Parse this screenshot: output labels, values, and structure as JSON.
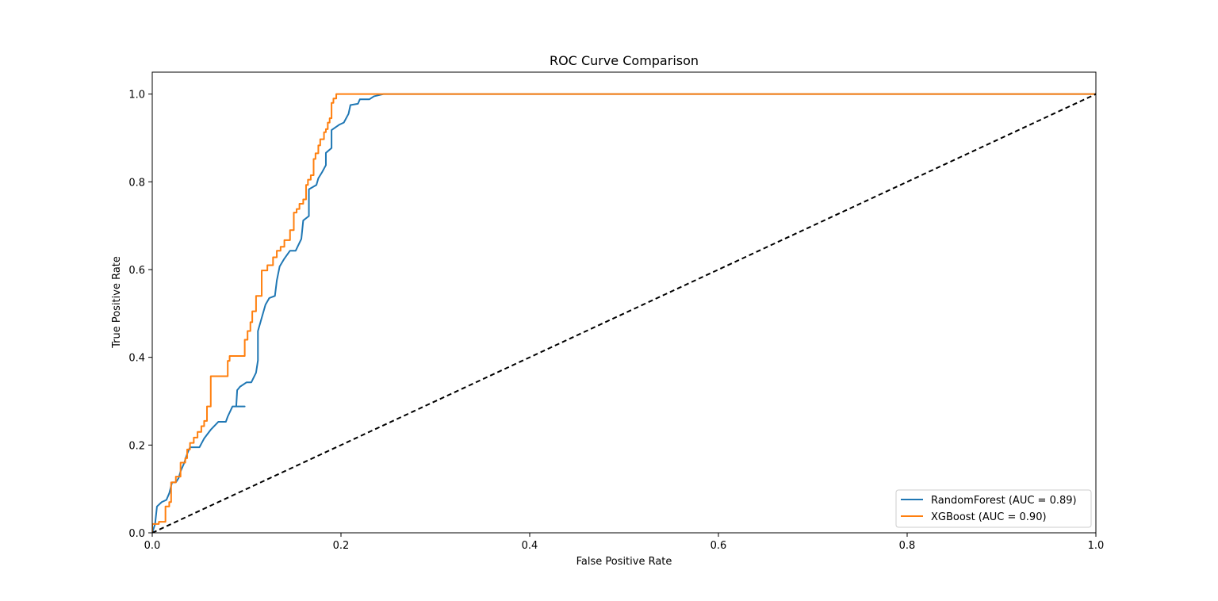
{
  "chart_data": {
    "type": "line",
    "title": "ROC Curve Comparison",
    "xlabel": "False Positive Rate",
    "ylabel": "True Positive Rate",
    "xlim": [
      0.0,
      1.0
    ],
    "ylim": [
      0.0,
      1.05
    ],
    "xticks": [
      0.0,
      0.2,
      0.4,
      0.6,
      0.8,
      1.0
    ],
    "yticks": [
      0.0,
      0.2,
      0.4,
      0.6,
      0.8,
      1.0
    ],
    "xtick_labels": [
      "0.0",
      "0.2",
      "0.4",
      "0.6",
      "0.8",
      "1.0"
    ],
    "ytick_labels": [
      "0.0",
      "0.2",
      "0.4",
      "0.6",
      "0.8",
      "1.0"
    ],
    "grid": false,
    "legend_position": "lower-right",
    "series": [
      {
        "name": "RandomForest (AUC = 0.89)",
        "color": "#1f77b4",
        "step": false,
        "points": [
          [
            0.0,
            0.0
          ],
          [
            0.003,
            0.02
          ],
          [
            0.005,
            0.06
          ],
          [
            0.01,
            0.07
          ],
          [
            0.015,
            0.075
          ],
          [
            0.018,
            0.09
          ],
          [
            0.021,
            0.115
          ],
          [
            0.025,
            0.115
          ],
          [
            0.028,
            0.125
          ],
          [
            0.03,
            0.14
          ],
          [
            0.034,
            0.16
          ],
          [
            0.037,
            0.18
          ],
          [
            0.04,
            0.195
          ],
          [
            0.046,
            0.195
          ],
          [
            0.05,
            0.195
          ],
          [
            0.055,
            0.215
          ],
          [
            0.062,
            0.235
          ],
          [
            0.07,
            0.253
          ],
          [
            0.078,
            0.253
          ],
          [
            0.08,
            0.265
          ],
          [
            0.085,
            0.288
          ],
          [
            0.09,
            0.288
          ],
          [
            0.098,
            0.288
          ],
          [
            0.09,
            0.288
          ],
          [
            0.089,
            0.288
          ],
          [
            0.09,
            0.325
          ],
          [
            0.093,
            0.333
          ],
          [
            0.1,
            0.343
          ],
          [
            0.105,
            0.343
          ],
          [
            0.11,
            0.365
          ],
          [
            0.112,
            0.393
          ],
          [
            0.112,
            0.46
          ],
          [
            0.12,
            0.52
          ],
          [
            0.124,
            0.535
          ],
          [
            0.13,
            0.54
          ],
          [
            0.132,
            0.575
          ],
          [
            0.135,
            0.607
          ],
          [
            0.14,
            0.625
          ],
          [
            0.146,
            0.643
          ],
          [
            0.152,
            0.643
          ],
          [
            0.158,
            0.67
          ],
          [
            0.16,
            0.712
          ],
          [
            0.166,
            0.722
          ],
          [
            0.166,
            0.783
          ],
          [
            0.174,
            0.793
          ],
          [
            0.176,
            0.808
          ],
          [
            0.18,
            0.822
          ],
          [
            0.184,
            0.838
          ],
          [
            0.184,
            0.866
          ],
          [
            0.19,
            0.877
          ],
          [
            0.19,
            0.918
          ],
          [
            0.198,
            0.93
          ],
          [
            0.203,
            0.935
          ],
          [
            0.208,
            0.955
          ],
          [
            0.21,
            0.975
          ],
          [
            0.218,
            0.978
          ],
          [
            0.22,
            0.988
          ],
          [
            0.23,
            0.988
          ],
          [
            0.235,
            0.995
          ],
          [
            0.245,
            1.0
          ],
          [
            1.0,
            1.0
          ]
        ]
      },
      {
        "name": "XGBoost (AUC = 0.90)",
        "color": "#ff7f0e",
        "step": true,
        "points": [
          [
            0.0,
            0.0
          ],
          [
            0.0,
            0.02
          ],
          [
            0.007,
            0.025
          ],
          [
            0.014,
            0.025
          ],
          [
            0.014,
            0.06
          ],
          [
            0.018,
            0.07
          ],
          [
            0.02,
            0.115
          ],
          [
            0.025,
            0.128
          ],
          [
            0.03,
            0.16
          ],
          [
            0.035,
            0.17
          ],
          [
            0.037,
            0.19
          ],
          [
            0.04,
            0.205
          ],
          [
            0.044,
            0.217
          ],
          [
            0.048,
            0.23
          ],
          [
            0.052,
            0.243
          ],
          [
            0.055,
            0.255
          ],
          [
            0.058,
            0.288
          ],
          [
            0.062,
            0.31
          ],
          [
            0.062,
            0.357
          ],
          [
            0.07,
            0.357
          ],
          [
            0.075,
            0.357
          ],
          [
            0.08,
            0.392
          ],
          [
            0.082,
            0.403
          ],
          [
            0.092,
            0.403
          ],
          [
            0.098,
            0.44
          ],
          [
            0.101,
            0.46
          ],
          [
            0.104,
            0.48
          ],
          [
            0.106,
            0.505
          ],
          [
            0.11,
            0.54
          ],
          [
            0.116,
            0.54
          ],
          [
            0.116,
            0.598
          ],
          [
            0.122,
            0.61
          ],
          [
            0.128,
            0.628
          ],
          [
            0.132,
            0.643
          ],
          [
            0.136,
            0.652
          ],
          [
            0.14,
            0.667
          ],
          [
            0.146,
            0.69
          ],
          [
            0.15,
            0.73
          ],
          [
            0.153,
            0.738
          ],
          [
            0.156,
            0.75
          ],
          [
            0.16,
            0.76
          ],
          [
            0.163,
            0.793
          ],
          [
            0.165,
            0.805
          ],
          [
            0.168,
            0.815
          ],
          [
            0.171,
            0.852
          ],
          [
            0.173,
            0.865
          ],
          [
            0.176,
            0.883
          ],
          [
            0.178,
            0.897
          ],
          [
            0.182,
            0.913
          ],
          [
            0.184,
            0.92
          ],
          [
            0.186,
            0.935
          ],
          [
            0.188,
            0.945
          ],
          [
            0.19,
            0.98
          ],
          [
            0.192,
            0.99
          ],
          [
            0.195,
            1.0
          ],
          [
            1.0,
            1.0
          ]
        ]
      },
      {
        "name": "",
        "color": "#000000",
        "dashed": true,
        "step": false,
        "points": [
          [
            0.0,
            0.0
          ],
          [
            1.0,
            1.0
          ]
        ]
      }
    ]
  },
  "legend": {
    "items": [
      "RandomForest (AUC = 0.89)",
      "XGBoost (AUC = 0.90)"
    ]
  }
}
